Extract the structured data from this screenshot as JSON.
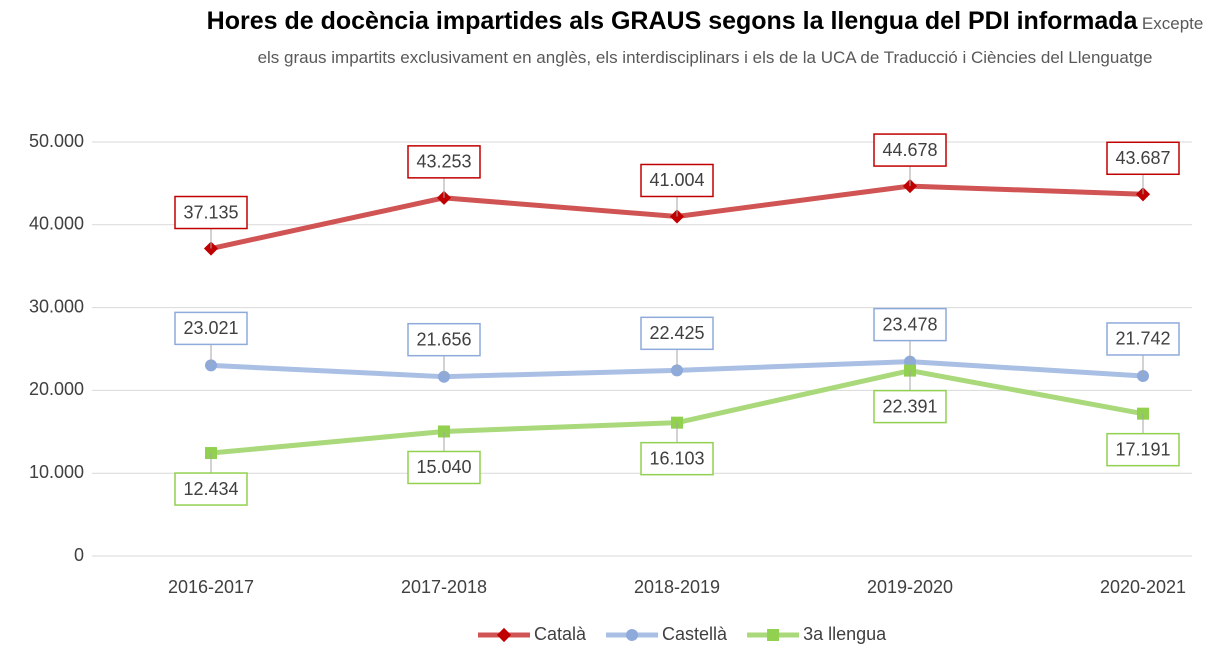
{
  "chart_data": {
    "type": "line",
    "title": "Hores de docència impartides als GRAUS segons la llengua del PDI informada",
    "subtitle": "Excepte els graus impartits exclusivament en anglès, els interdisciplinars i els de la UCA de Traducció i Ciències del Llenguatge",
    "categories": [
      "2016-2017",
      "2017-2018",
      "2018-2019",
      "2019-2020",
      "2020-2021"
    ],
    "series": [
      {
        "name": "Català",
        "color": "#d05454",
        "marker_color": "#c00000",
        "values": [
          37135,
          43253,
          41004,
          44678,
          43687
        ],
        "value_labels": [
          "37.135",
          "43.253",
          "41.004",
          "44.678",
          "43.687"
        ]
      },
      {
        "name": "Castellà",
        "color": "#aabfe4",
        "marker_color": "#8eaadb",
        "values": [
          23021,
          21656,
          22425,
          23478,
          21742
        ],
        "value_labels": [
          "23.021",
          "21.656",
          "22.425",
          "23.478",
          "21.742"
        ]
      },
      {
        "name": "3a llengua",
        "color": "#a9d97a",
        "marker_color": "#92d050",
        "values": [
          12434,
          15040,
          16103,
          22391,
          17191
        ],
        "value_labels": [
          "12.434",
          "15.040",
          "16.103",
          "22.391",
          "17.191"
        ]
      }
    ],
    "ylim": [
      0,
      50000
    ],
    "yticks": [
      0,
      {
        "value": 10000,
        "label": "10.000"
      },
      {
        "value": 20000,
        "label": "20.000"
      },
      {
        "value": 30000,
        "label": "30.000"
      },
      {
        "value": 40000,
        "label": "40.000"
      },
      {
        "value": 50000,
        "label": "50.000"
      }
    ],
    "grid": true,
    "legend": "bottom"
  }
}
